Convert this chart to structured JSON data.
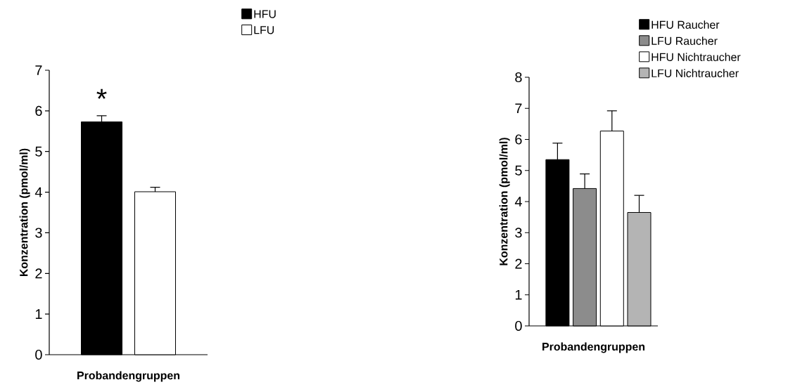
{
  "chart_data": [
    {
      "type": "bar",
      "categories": [
        null
      ],
      "xlabel": "Probandengruppen",
      "ylabel": "Konzentration (pmol/ml)",
      "ylim": [
        0,
        7
      ],
      "yticks": [
        0,
        1,
        2,
        3,
        4,
        5,
        6,
        7
      ],
      "legend": "top right",
      "annotations": [
        "*"
      ],
      "series": [
        {
          "name": "HFU",
          "color": "#000000",
          "values": [
            5.73
          ],
          "errors": [
            [
              5.73,
              5.88
            ]
          ]
        },
        {
          "name": "LFU",
          "color": "#ffffff",
          "values": [
            4.01
          ],
          "errors": [
            [
              4.01,
              4.12
            ]
          ]
        }
      ]
    },
    {
      "type": "bar",
      "categories": [
        null
      ],
      "xlabel": "Probandengruppen",
      "ylabel": "Konzentration (pmol/ml)",
      "ylim": [
        0,
        8
      ],
      "yticks": [
        0,
        1,
        2,
        3,
        4,
        5,
        6,
        7,
        8
      ],
      "legend": "top right",
      "series": [
        {
          "name": "HFU Raucher",
          "color": "#000000",
          "values": [
            5.35
          ],
          "errors": [
            [
              5.35,
              5.88
            ]
          ]
        },
        {
          "name": "LFU Raucher",
          "color": "#8c8c8c",
          "values": [
            4.42
          ],
          "errors": [
            [
              4.42,
              4.89
            ]
          ]
        },
        {
          "name": "HFU Nichtraucher",
          "color": "#ffffff",
          "values": [
            6.27
          ],
          "errors": [
            [
              6.27,
              6.92
            ]
          ]
        },
        {
          "name": "LFU Nichtraucher",
          "color": "#b4b4b4",
          "values": [
            3.65
          ],
          "errors": [
            [
              3.65,
              4.2
            ]
          ]
        }
      ]
    }
  ]
}
